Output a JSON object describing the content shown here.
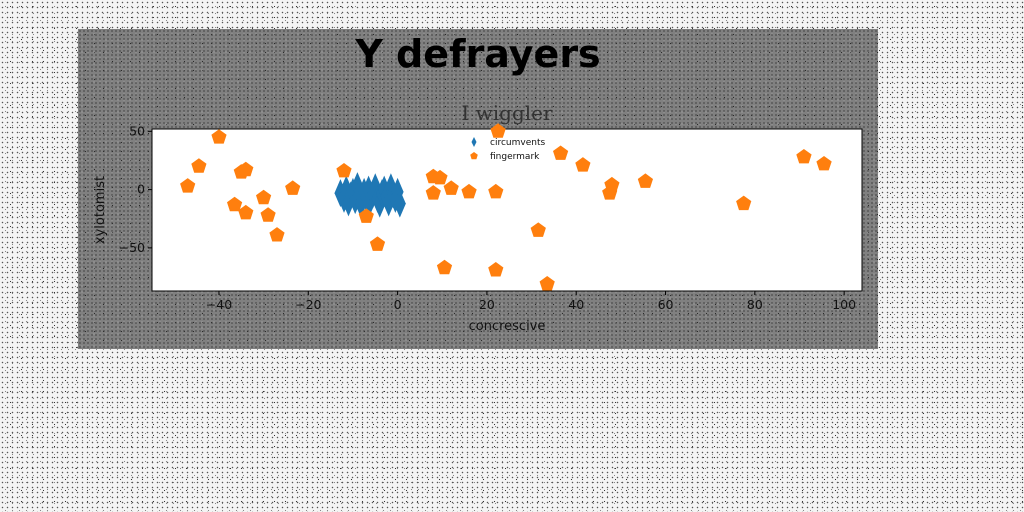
{
  "chart_data": {
    "type": "scatter",
    "suptitle": "Y defrayers",
    "title": "I wiggler",
    "xlabel": "concrescive",
    "ylabel": "xylotomist",
    "xlim": [
      -55,
      104
    ],
    "ylim": [
      -87,
      52
    ],
    "xticks": [
      -40,
      -20,
      0,
      20,
      40,
      60,
      80,
      100
    ],
    "yticks": [
      -50,
      0,
      50
    ],
    "grid": false,
    "legend_position": "top-center",
    "series": [
      {
        "name": "circumvents",
        "marker": "thin-diamond",
        "color": "#1f77b4",
        "points": [
          [
            -12.8,
            -3
          ],
          [
            -12,
            -8
          ],
          [
            -11.5,
            0
          ],
          [
            -11,
            -11
          ],
          [
            -10.5,
            -5
          ],
          [
            -10,
            -2
          ],
          [
            -9.5,
            -9
          ],
          [
            -9,
            3
          ],
          [
            -8.8,
            -6
          ],
          [
            -8.2,
            -12
          ],
          [
            -7.5,
            -2
          ],
          [
            -7,
            -7
          ],
          [
            -6.5,
            0
          ],
          [
            -6.2,
            -10
          ],
          [
            -5.5,
            -4
          ],
          [
            -5,
            2
          ],
          [
            -4.5,
            -8
          ],
          [
            -4,
            -12
          ],
          [
            -3.5,
            -3
          ],
          [
            -3,
            0
          ],
          [
            -2.5,
            -6
          ],
          [
            -2,
            -11
          ],
          [
            -1.5,
            2
          ],
          [
            -1,
            -4
          ],
          [
            -0.5,
            -8
          ],
          [
            0,
            -2
          ],
          [
            0.5,
            -12
          ]
        ]
      },
      {
        "name": "fingermark",
        "marker": "pentagon",
        "color": "#ff7f0e",
        "points": [
          [
            -47,
            3
          ],
          [
            -44.5,
            20
          ],
          [
            -40,
            45
          ],
          [
            -36.5,
            -13
          ],
          [
            -35,
            15
          ],
          [
            -34,
            17
          ],
          [
            -34,
            -20
          ],
          [
            -30,
            -7
          ],
          [
            -29,
            -22
          ],
          [
            -27,
            -39
          ],
          [
            -23.5,
            1
          ],
          [
            -12,
            16
          ],
          [
            -7,
            -23
          ],
          [
            -4.5,
            -47
          ],
          [
            8,
            11
          ],
          [
            8,
            -3
          ],
          [
            9.5,
            10
          ],
          [
            10.5,
            -67
          ],
          [
            12,
            1
          ],
          [
            16,
            -2
          ],
          [
            22,
            -69
          ],
          [
            22,
            -2
          ],
          [
            22.5,
            50
          ],
          [
            31.5,
            -35
          ],
          [
            33.5,
            -81
          ],
          [
            36.5,
            31
          ],
          [
            41.5,
            21
          ],
          [
            47.5,
            -3
          ],
          [
            48,
            4
          ],
          [
            55.5,
            7
          ],
          [
            77.5,
            -12
          ],
          [
            91,
            28
          ],
          [
            95.5,
            22
          ]
        ]
      }
    ]
  }
}
